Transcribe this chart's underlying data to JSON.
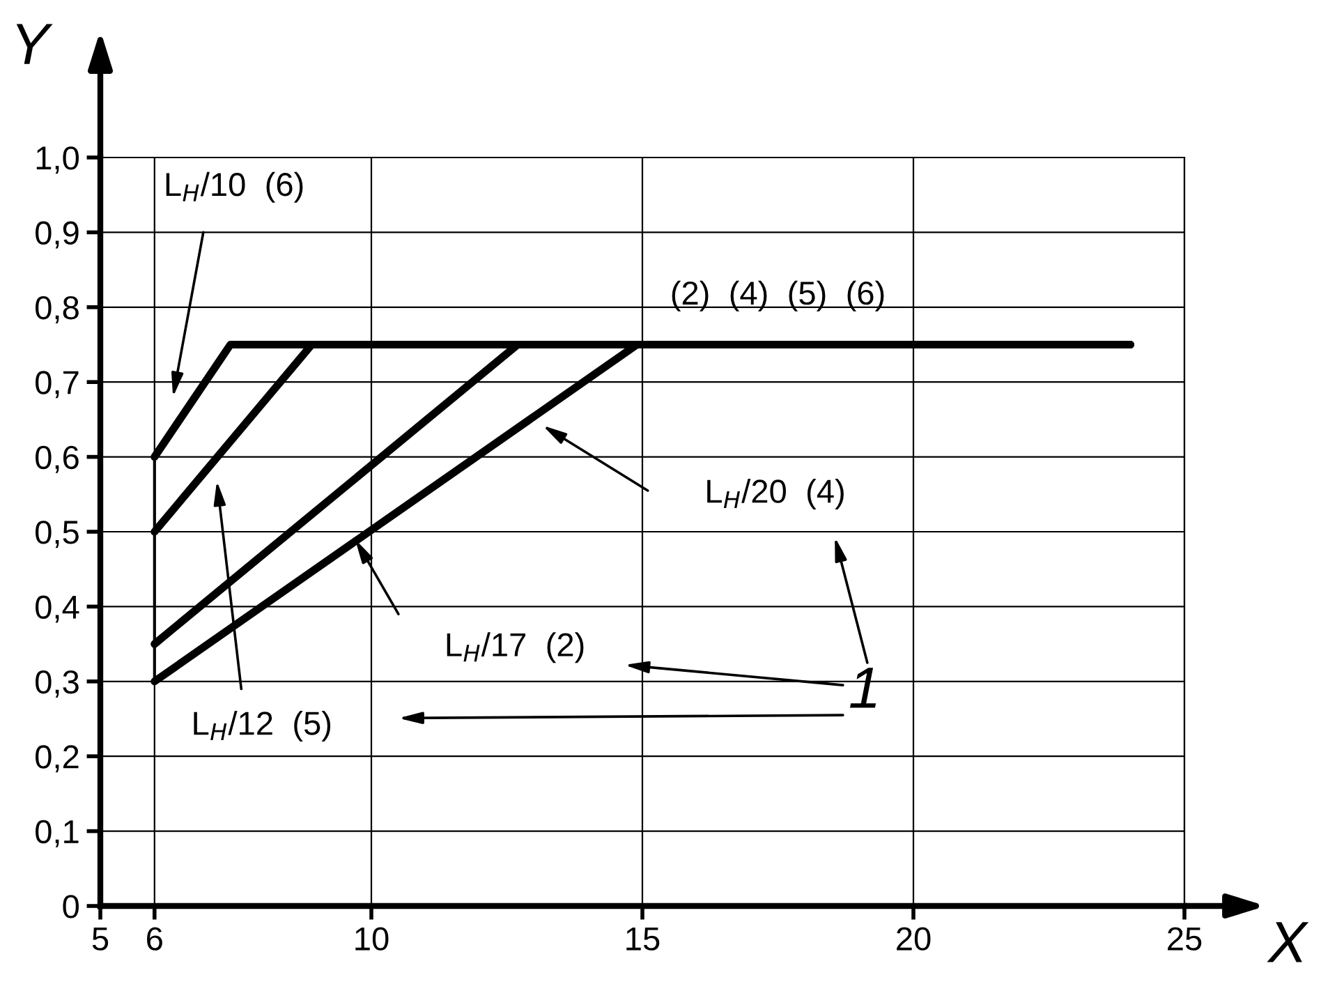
{
  "chart_data": {
    "type": "line",
    "xlabel": "X",
    "ylabel": "Y",
    "xlim": [
      5,
      25
    ],
    "ylim": [
      0,
      1.0
    ],
    "xticks": [
      5,
      6,
      10,
      15,
      20,
      25
    ],
    "yticks": [
      0,
      {
        "value": 0.1,
        "label": "0,1"
      },
      {
        "value": 0.2,
        "label": "0,2"
      },
      {
        "value": 0.3,
        "label": "0,3"
      },
      {
        "value": 0.4,
        "label": "0,4"
      },
      {
        "value": 0.5,
        "label": "0,5"
      },
      {
        "value": 0.6,
        "label": "0,6"
      },
      {
        "value": 0.7,
        "label": "0,7"
      },
      {
        "value": 0.8,
        "label": "0,8"
      },
      {
        "value": 0.9,
        "label": "0,9"
      },
      {
        "value": 1.0,
        "label": "1,0"
      }
    ],
    "grid": true,
    "legend": false,
    "marker": "none",
    "line_style": "solid",
    "series": [
      {
        "color": "#000000",
        "x": [
          6,
          7.4,
          24
        ],
        "values": [
          0.6,
          0.75,
          0.75
        ]
      },
      {
        "color": "#000000",
        "x": [
          6,
          8.9,
          24
        ],
        "values": [
          0.5,
          0.75,
          0.75
        ]
      },
      {
        "color": "#000000",
        "x": [
          6,
          12.7,
          24
        ],
        "values": [
          0.35,
          0.75,
          0.75
        ]
      },
      {
        "color": "#000000",
        "x": [
          6,
          14.9,
          24
        ],
        "values": [
          0.3,
          0.75,
          0.75
        ]
      },
      {
        "color": "#000000",
        "x": [
          6,
          6
        ],
        "values": [
          0.3,
          0.6
        ]
      }
    ],
    "annotations": [
      "L$_{H}$/10  (6)",
      "L$_{H}$/20  (4)",
      "L$_{H}$/17  (2)",
      "L$_{H}$/12  (5)",
      "(2)  (4)  (5)  (6)",
      "1"
    ]
  }
}
